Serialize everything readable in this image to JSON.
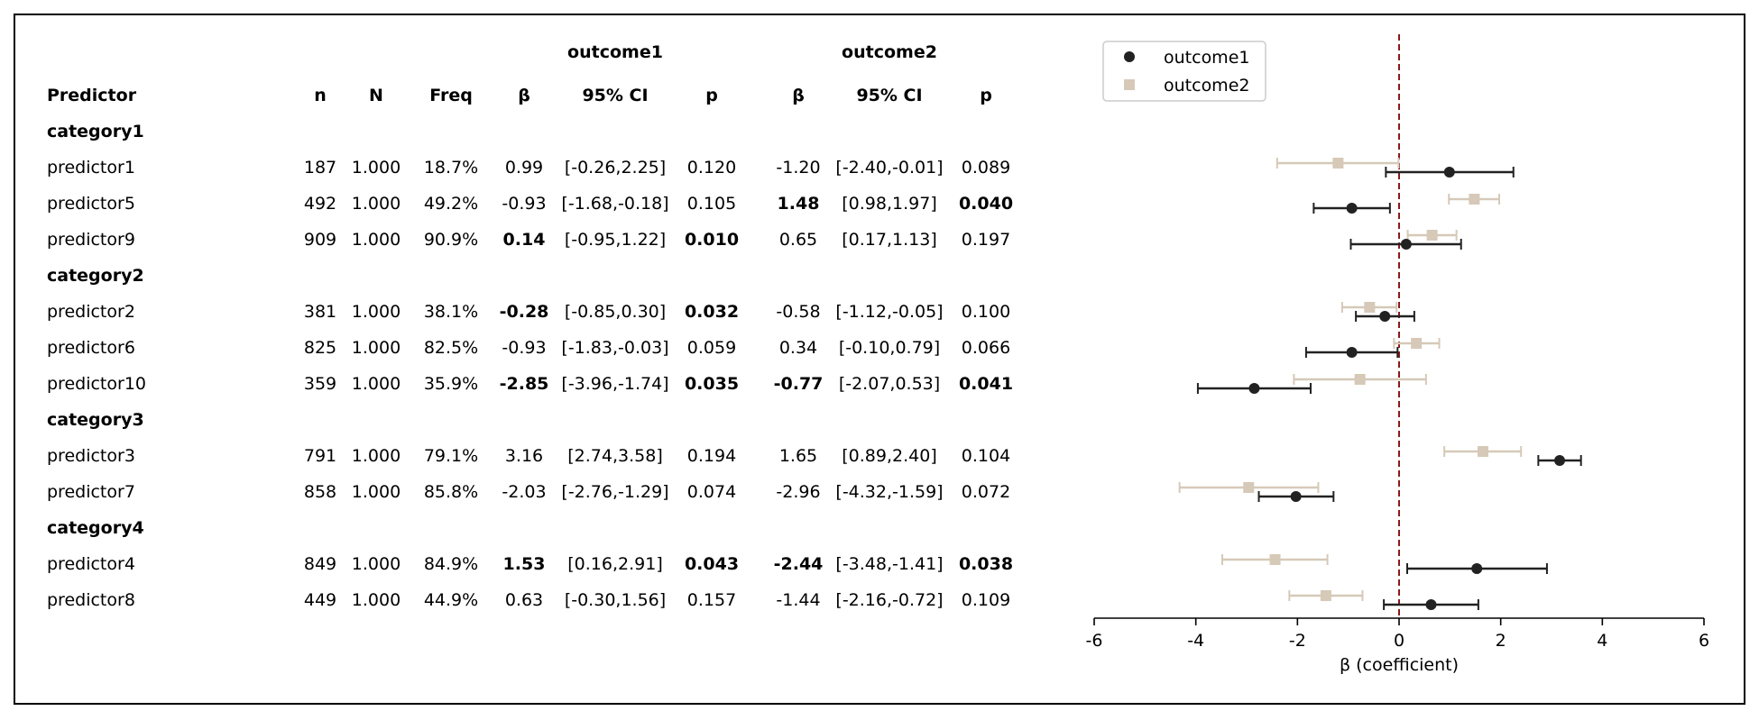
{
  "table": {
    "group_headers": [
      "outcome1",
      "outcome2"
    ],
    "columns": [
      "Predictor",
      "n",
      "N",
      "Freq",
      "β",
      "95% CI",
      "p",
      "β",
      "95% CI",
      "p"
    ]
  },
  "rows": [
    {
      "type": "category",
      "label": "category1"
    },
    {
      "type": "predictor",
      "label": "predictor1",
      "n": "187",
      "N": "1.000",
      "freq": "18.7%",
      "o1": {
        "beta": "0.99",
        "ci": "[-0.26,2.25]",
        "p": "0.120",
        "sig": false
      },
      "o2": {
        "beta": "-1.20",
        "ci": "[-2.40,-0.01]",
        "p": "0.089",
        "sig": false
      }
    },
    {
      "type": "predictor",
      "label": "predictor5",
      "n": "492",
      "N": "1.000",
      "freq": "49.2%",
      "o1": {
        "beta": "-0.93",
        "ci": "[-1.68,-0.18]",
        "p": "0.105",
        "sig": false
      },
      "o2": {
        "beta": "1.48",
        "ci": "[0.98,1.97]",
        "p": "0.040",
        "sig": true
      }
    },
    {
      "type": "predictor",
      "label": "predictor9",
      "n": "909",
      "N": "1.000",
      "freq": "90.9%",
      "o1": {
        "beta": "0.14",
        "ci": "[-0.95,1.22]",
        "p": "0.010",
        "sig": true
      },
      "o2": {
        "beta": "0.65",
        "ci": "[0.17,1.13]",
        "p": "0.197",
        "sig": false
      }
    },
    {
      "type": "category",
      "label": "category2"
    },
    {
      "type": "predictor",
      "label": "predictor2",
      "n": "381",
      "N": "1.000",
      "freq": "38.1%",
      "o1": {
        "beta": "-0.28",
        "ci": "[-0.85,0.30]",
        "p": "0.032",
        "sig": true
      },
      "o2": {
        "beta": "-0.58",
        "ci": "[-1.12,-0.05]",
        "p": "0.100",
        "sig": false
      }
    },
    {
      "type": "predictor",
      "label": "predictor6",
      "n": "825",
      "N": "1.000",
      "freq": "82.5%",
      "o1": {
        "beta": "-0.93",
        "ci": "[-1.83,-0.03]",
        "p": "0.059",
        "sig": false
      },
      "o2": {
        "beta": "0.34",
        "ci": "[-0.10,0.79]",
        "p": "0.066",
        "sig": false
      }
    },
    {
      "type": "predictor",
      "label": "predictor10",
      "n": "359",
      "N": "1.000",
      "freq": "35.9%",
      "o1": {
        "beta": "-2.85",
        "ci": "[-3.96,-1.74]",
        "p": "0.035",
        "sig": true
      },
      "o2": {
        "beta": "-0.77",
        "ci": "[-2.07,0.53]",
        "p": "0.041",
        "sig": true
      }
    },
    {
      "type": "category",
      "label": "category3"
    },
    {
      "type": "predictor",
      "label": "predictor3",
      "n": "791",
      "N": "1.000",
      "freq": "79.1%",
      "o1": {
        "beta": "3.16",
        "ci": "[2.74,3.58]",
        "p": "0.194",
        "sig": false
      },
      "o2": {
        "beta": "1.65",
        "ci": "[0.89,2.40]",
        "p": "0.104",
        "sig": false
      }
    },
    {
      "type": "predictor",
      "label": "predictor7",
      "n": "858",
      "N": "1.000",
      "freq": "85.8%",
      "o1": {
        "beta": "-2.03",
        "ci": "[-2.76,-1.29]",
        "p": "0.074",
        "sig": false
      },
      "o2": {
        "beta": "-2.96",
        "ci": "[-4.32,-1.59]",
        "p": "0.072",
        "sig": false
      }
    },
    {
      "type": "category",
      "label": "category4"
    },
    {
      "type": "predictor",
      "label": "predictor4",
      "n": "849",
      "N": "1.000",
      "freq": "84.9%",
      "o1": {
        "beta": "1.53",
        "ci": "[0.16,2.91]",
        "p": "0.043",
        "sig": true
      },
      "o2": {
        "beta": "-2.44",
        "ci": "[-3.48,-1.41]",
        "p": "0.038",
        "sig": true
      }
    },
    {
      "type": "predictor",
      "label": "predictor8",
      "n": "449",
      "N": "1.000",
      "freq": "44.9%",
      "o1": {
        "beta": "0.63",
        "ci": "[-0.30,1.56]",
        "p": "0.157",
        "sig": false
      },
      "o2": {
        "beta": "-1.44",
        "ci": "[-2.16,-0.72]",
        "p": "0.109",
        "sig": false
      }
    }
  ],
  "chart_data": {
    "type": "scatter",
    "xlabel": "β (coefficient)",
    "xlim": [
      -6,
      6
    ],
    "xticks": [
      "-6",
      "-4",
      "-2",
      "0",
      "2",
      "4",
      "6"
    ],
    "reference_line": 0,
    "legend_position": "upper-left",
    "series": [
      {
        "name": "outcome1",
        "color": "#222222",
        "marker": "circle",
        "points": [
          {
            "predictor": "predictor1",
            "beta": 0.99,
            "lo": -0.26,
            "hi": 2.25
          },
          {
            "predictor": "predictor5",
            "beta": -0.93,
            "lo": -1.68,
            "hi": -0.18
          },
          {
            "predictor": "predictor9",
            "beta": 0.14,
            "lo": -0.95,
            "hi": 1.22
          },
          {
            "predictor": "predictor2",
            "beta": -0.28,
            "lo": -0.85,
            "hi": 0.3
          },
          {
            "predictor": "predictor6",
            "beta": -0.93,
            "lo": -1.83,
            "hi": -0.03
          },
          {
            "predictor": "predictor10",
            "beta": -2.85,
            "lo": -3.96,
            "hi": -1.74
          },
          {
            "predictor": "predictor3",
            "beta": 3.16,
            "lo": 2.74,
            "hi": 3.58
          },
          {
            "predictor": "predictor7",
            "beta": -2.03,
            "lo": -2.76,
            "hi": -1.29
          },
          {
            "predictor": "predictor4",
            "beta": 1.53,
            "lo": 0.16,
            "hi": 2.91
          },
          {
            "predictor": "predictor8",
            "beta": 0.63,
            "lo": -0.3,
            "hi": 1.56
          }
        ]
      },
      {
        "name": "outcome2",
        "color": "#d6c9b8",
        "marker": "square",
        "points": [
          {
            "predictor": "predictor1",
            "beta": -1.2,
            "lo": -2.4,
            "hi": -0.01
          },
          {
            "predictor": "predictor5",
            "beta": 1.48,
            "lo": 0.98,
            "hi": 1.97
          },
          {
            "predictor": "predictor9",
            "beta": 0.65,
            "lo": 0.17,
            "hi": 1.13
          },
          {
            "predictor": "predictor2",
            "beta": -0.58,
            "lo": -1.12,
            "hi": -0.05
          },
          {
            "predictor": "predictor6",
            "beta": 0.34,
            "lo": -0.1,
            "hi": 0.79
          },
          {
            "predictor": "predictor10",
            "beta": -0.77,
            "lo": -2.07,
            "hi": 0.53
          },
          {
            "predictor": "predictor3",
            "beta": 1.65,
            "lo": 0.89,
            "hi": 2.4
          },
          {
            "predictor": "predictor7",
            "beta": -2.96,
            "lo": -4.32,
            "hi": -1.59
          },
          {
            "predictor": "predictor4",
            "beta": -2.44,
            "lo": -3.48,
            "hi": -1.41
          },
          {
            "predictor": "predictor8",
            "beta": -1.44,
            "lo": -2.16,
            "hi": -0.72
          }
        ]
      }
    ],
    "reference_line_color": "#8b1a1a"
  }
}
